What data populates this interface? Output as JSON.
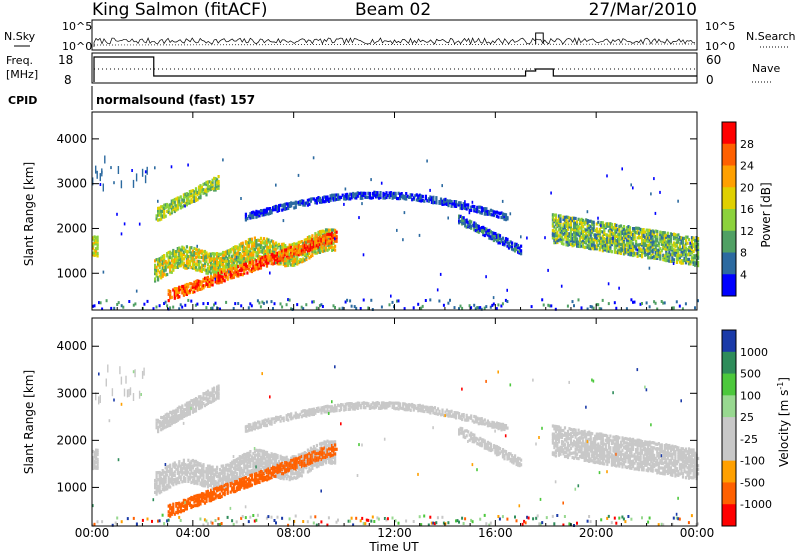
{
  "header": {
    "station": "King Salmon (fitACF)",
    "beam": "Beam 02",
    "date": "27/Mar/2010"
  },
  "status_panels": {
    "nsky_label": "N.Sky",
    "nsearch_label": "N.Search",
    "noise_ticks_left": [
      "10^5",
      "10^0"
    ],
    "noise_ticks_right": [
      "10^5",
      "10^0"
    ],
    "freq_label_1": "Freq.",
    "freq_label_2": "[MHz]",
    "freq_ticks": [
      "18",
      "8"
    ],
    "nave_label": "Nave",
    "nave_ticks": [
      "60",
      "0"
    ],
    "cpid_label": "CPID",
    "cpid_text": "normalsound (fast) 157"
  },
  "chart_data": [
    {
      "type": "heatmap",
      "name": "power",
      "ylabel": "Slant Range [km]",
      "colorbar_label": "Power [dB]",
      "colorbar_ticks": [
        "28",
        "24",
        "20",
        "16",
        "12",
        "8",
        "4"
      ],
      "colorbar_colors": [
        "#ff0000",
        "#ff6000",
        "#ffa000",
        "#e0d000",
        "#8cd23c",
        "#50a064",
        "#2c6aa0",
        "#0000ff"
      ],
      "yticks": [
        "4000",
        "3000",
        "2000",
        "1000"
      ],
      "ylim": [
        180,
        4600
      ]
    },
    {
      "type": "heatmap",
      "name": "velocity",
      "ylabel": "Slant Range [km]",
      "colorbar_label": "Velocity [m s",
      "colorbar_label_sup": "-1",
      "colorbar_ticks": [
        "1000",
        "500",
        "100",
        "25",
        "-25",
        "-100",
        "-500",
        "-1000"
      ],
      "colorbar_colors": [
        "#1a3aa8",
        "#2e8c5a",
        "#4cc83c",
        "#98d890",
        "#c8c8c8",
        "#c8c8c8",
        "#ffa000",
        "#ff6000",
        "#ff0000"
      ],
      "yticks": [
        "4000",
        "3000",
        "2000",
        "1000"
      ],
      "ylim": [
        180,
        4600
      ]
    }
  ],
  "x_axis": {
    "tick_labels": [
      "00:00",
      "04:00",
      "08:00",
      "12:00",
      "16:00",
      "20:00",
      "00:00"
    ],
    "xlabel": "Time UT",
    "xlim_hours": [
      0,
      24
    ]
  }
}
